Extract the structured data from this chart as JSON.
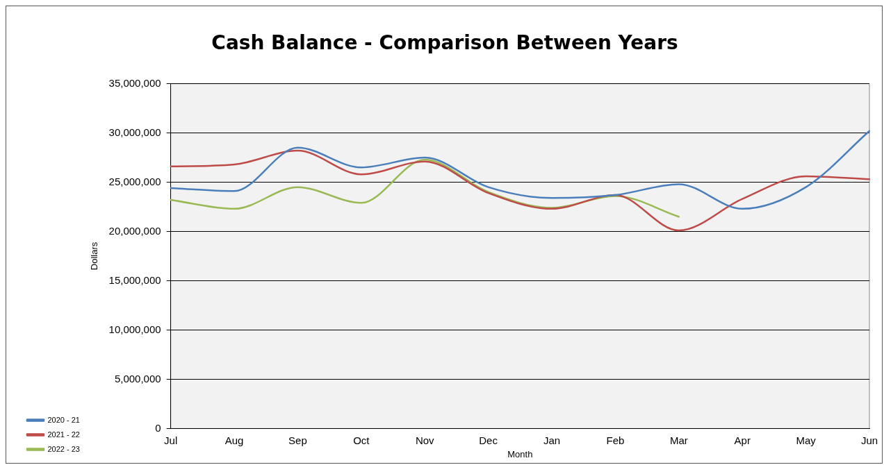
{
  "chart_data": {
    "type": "line",
    "title": "Cash Balance - Comparison Between Years",
    "xlabel": "Month",
    "ylabel": "Dollars",
    "categories": [
      "Jul",
      "Aug",
      "Sep",
      "Oct",
      "Nov",
      "Dec",
      "Jan",
      "Feb",
      "Mar",
      "Apr",
      "May",
      "Jun"
    ],
    "series": [
      {
        "name": "2020 - 21",
        "color": "#4a7ebb",
        "values": [
          24400000,
          24100000,
          28500000,
          26500000,
          27500000,
          24500000,
          23400000,
          23700000,
          24800000,
          22300000,
          24500000,
          30200000
        ]
      },
      {
        "name": "2021 - 22",
        "color": "#be4b48",
        "values": [
          26600000,
          26800000,
          28200000,
          25800000,
          27100000,
          23900000,
          22300000,
          23700000,
          20100000,
          23300000,
          25600000,
          25300000
        ]
      },
      {
        "name": "2022 - 23",
        "color": "#98b954",
        "values": [
          23200000,
          22300000,
          24500000,
          22900000,
          27300000,
          24000000,
          22400000,
          23600000,
          21500000,
          null,
          null,
          null
        ]
      }
    ],
    "ylim": [
      0,
      35000000
    ],
    "yticks": [
      0,
      {
        "value": 5000000,
        "label": "5,000,000"
      },
      {
        "value": 10000000,
        "label": "10,000,000"
      },
      {
        "value": 15000000,
        "label": "15,000,000"
      },
      {
        "value": 20000000,
        "label": "20,000,000"
      },
      {
        "value": 25000000,
        "label": "25,000,000"
      },
      {
        "value": 30000000,
        "label": "30,000,000"
      },
      {
        "value": 35000000,
        "label": "35,000,000"
      }
    ],
    "grid": "y",
    "legend": "bottom left",
    "marker": "none",
    "line_style": "solid"
  }
}
